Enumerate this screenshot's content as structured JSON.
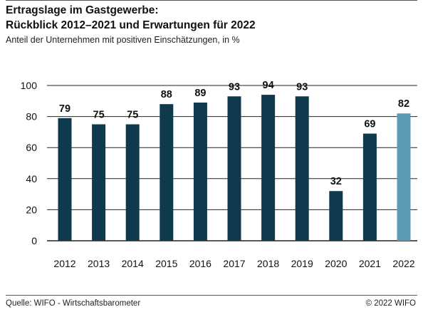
{
  "header": {
    "title_line1": "Ertragslage im Gastgewerbe:",
    "title_line2": "Rückblick 2012–2021 und Erwartungen für 2022",
    "subtitle": "Anteil der Unternehmen mit positiven Einschätzungen, in %"
  },
  "footer": {
    "source": "Quelle: WIFO - Wirtschaftsbarometer",
    "copyright": "© 2022 WIFO"
  },
  "colors": {
    "bar": "#0f3a4d",
    "bar_forecast": "#5d9ab3",
    "grid": "#222222"
  },
  "chart_data": {
    "type": "bar",
    "title": "Ertragslage im Gastgewerbe: Rückblick 2012–2021 und Erwartungen für 2022",
    "subtitle": "Anteil der Unternehmen mit positiven Einschätzungen, in %",
    "categories": [
      "2012",
      "2013",
      "2014",
      "2015",
      "2016",
      "2017",
      "2018",
      "2019",
      "2020",
      "2021",
      "2022"
    ],
    "values": [
      79,
      75,
      75,
      88,
      89,
      93,
      94,
      93,
      32,
      69,
      82
    ],
    "forecast_categories": [
      "2022"
    ],
    "ylim": [
      0,
      100
    ],
    "yticks": [
      0,
      20,
      40,
      60,
      80,
      100
    ],
    "xlabel": "",
    "ylabel": "",
    "grid": true,
    "data_labels": true
  }
}
